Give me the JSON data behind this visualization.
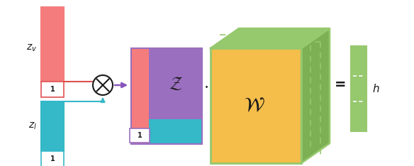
{
  "fig_width": 5.84,
  "fig_height": 2.34,
  "dpi": 100,
  "background": "#ffffff",
  "colors": {
    "red_bar": "#F47C7C",
    "teal_bar": "#35B8C8",
    "purple": "#9B6FC0",
    "orange_cube": "#F5BE4A",
    "green": "#96C86E",
    "green_dark": "#7DB055",
    "arrow_red": "#E05050",
    "arrow_teal": "#35B8C8",
    "arrow_purple": "#8855BB",
    "text_dark": "#1a1a1a"
  },
  "labels": {
    "zv": "$z_v$",
    "zl": "$z_l$",
    "z_script": "$\\mathcal{Z}$",
    "w_script": "$\\mathcal{W}$",
    "h": "$h$"
  },
  "layout": {
    "xlim": [
      0,
      5.84
    ],
    "ylim": [
      0,
      2.34
    ]
  }
}
